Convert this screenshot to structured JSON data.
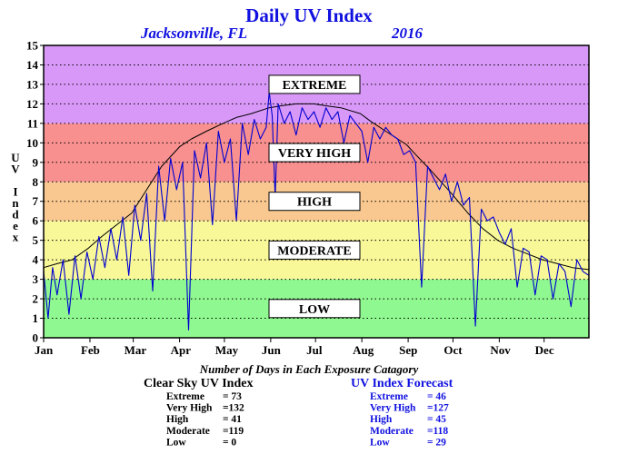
{
  "chart_data": {
    "type": "line",
    "title": "Daily UV Index",
    "subtitle_location": "Jacksonville, FL",
    "subtitle_year": "2016",
    "ylabel": "UV Index",
    "ylim": [
      0,
      15
    ],
    "y_ticks": [
      "0",
      "1",
      "2",
      "3",
      "4",
      "5",
      "6",
      "7",
      "8",
      "9",
      "10",
      "11",
      "12",
      "13",
      "14",
      "15"
    ],
    "x_ticks": [
      "Jan",
      "Feb",
      "Mar",
      "Apr",
      "May",
      "Jun",
      "Jul",
      "Aug",
      "Sep",
      "Oct",
      "Nov",
      "Dec"
    ],
    "x_unit": "day of year",
    "xlim": [
      1,
      366
    ],
    "grid": true,
    "bands": [
      {
        "label": "LOW",
        "from": 0,
        "to": 3,
        "color": "#90f890"
      },
      {
        "label": "MODERATE",
        "from": 3,
        "to": 6,
        "color": "#f8f898"
      },
      {
        "label": "HIGH",
        "from": 6,
        "to": 8,
        "color": "#f8c890"
      },
      {
        "label": "VERY HIGH",
        "from": 8,
        "to": 11,
        "color": "#f89090"
      },
      {
        "label": "EXTREME",
        "from": 11,
        "to": 15,
        "color": "#d898f8"
      }
    ],
    "series": [
      {
        "color": "#000000",
        "x": [
          1,
          10,
          20,
          31,
          40,
          50,
          60,
          70,
          80,
          92,
          100,
          110,
          121,
          130,
          140,
          152,
          160,
          170,
          182,
          190,
          200,
          213,
          220,
          230,
          244,
          250,
          260,
          274,
          285,
          295,
          305,
          315,
          325,
          335,
          345,
          355,
          366
        ],
        "y": [
          3.6,
          3.8,
          4.0,
          4.6,
          5.2,
          5.8,
          6.4,
          7.6,
          8.8,
          9.8,
          10.2,
          10.6,
          11.0,
          11.3,
          11.5,
          11.8,
          11.9,
          12.0,
          12.0,
          11.9,
          11.8,
          11.5,
          11.1,
          10.6,
          9.9,
          9.4,
          8.6,
          7.4,
          6.4,
          5.6,
          5.0,
          4.6,
          4.3,
          4.0,
          3.8,
          3.6,
          3.5
        ]
      },
      {
        "color": "#0000d0",
        "x": [
          1,
          4,
          7,
          10,
          14,
          18,
          22,
          26,
          30,
          34,
          38,
          42,
          46,
          50,
          54,
          58,
          62,
          66,
          70,
          74,
          78,
          82,
          86,
          90,
          94,
          98,
          102,
          106,
          110,
          114,
          118,
          122,
          126,
          130,
          134,
          138,
          142,
          146,
          150,
          152,
          154,
          156,
          158,
          162,
          166,
          170,
          174,
          178,
          182,
          186,
          190,
          194,
          198,
          202,
          206,
          210,
          214,
          218,
          222,
          226,
          230,
          234,
          238,
          242,
          246,
          250,
          254,
          258,
          262,
          266,
          270,
          274,
          278,
          282,
          286,
          290,
          294,
          298,
          302,
          306,
          310,
          314,
          318,
          322,
          326,
          330,
          334,
          338,
          342,
          346,
          350,
          354,
          358,
          362,
          366
        ],
        "y": [
          3.4,
          1.0,
          3.6,
          2.2,
          4.0,
          1.2,
          4.2,
          2.0,
          4.4,
          3.0,
          5.2,
          3.6,
          5.6,
          4.0,
          6.2,
          3.2,
          6.8,
          5.0,
          7.4,
          2.4,
          8.8,
          6.0,
          9.2,
          7.6,
          9.0,
          0.4,
          9.6,
          8.2,
          10.0,
          5.8,
          10.6,
          9.0,
          10.2,
          6.0,
          11.0,
          9.4,
          11.2,
          10.2,
          10.8,
          12.6,
          11.4,
          7.2,
          12.0,
          11.0,
          11.6,
          10.4,
          11.8,
          11.2,
          11.6,
          10.8,
          11.8,
          11.2,
          11.6,
          10.0,
          11.4,
          11.0,
          10.6,
          9.0,
          10.8,
          10.2,
          10.8,
          10.4,
          10.2,
          9.4,
          9.6,
          9.0,
          2.6,
          8.8,
          8.2,
          7.6,
          8.4,
          7.0,
          8.0,
          6.8,
          7.2,
          0.6,
          6.6,
          6.0,
          6.2,
          5.4,
          4.8,
          5.6,
          2.6,
          4.6,
          4.4,
          2.2,
          4.2,
          4.0,
          2.0,
          3.8,
          3.4,
          1.6,
          4.0,
          3.4,
          3.2
        ]
      }
    ],
    "summary": {
      "caption": "Number of Days in Each Exposure Catagory",
      "clear_sky": {
        "title": "Clear Sky UV Index",
        "color": "#000000",
        "rows": [
          {
            "label": "Extreme",
            "value": "= 73"
          },
          {
            "label": "Very High",
            "value": "=132"
          },
          {
            "label": "High",
            "value": "= 41"
          },
          {
            "label": "Moderate",
            "value": "=119"
          },
          {
            "label": "Low",
            "value": "= 0"
          }
        ]
      },
      "forecast": {
        "title": "UV Index Forecast",
        "color": "#1010e0",
        "rows": [
          {
            "label": "Extreme",
            "value": "= 46"
          },
          {
            "label": "Very High",
            "value": "=127"
          },
          {
            "label": "High",
            "value": "= 45"
          },
          {
            "label": "Moderate",
            "value": "=118"
          },
          {
            "label": "Low",
            "value": "= 29"
          }
        ]
      }
    }
  }
}
